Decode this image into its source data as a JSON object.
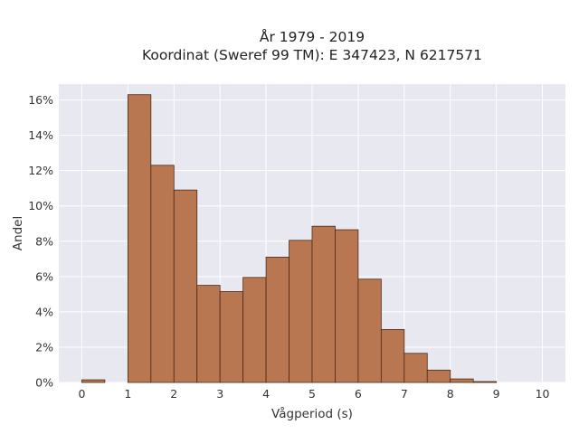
{
  "chart_data": {
    "type": "bar",
    "title": "År 1979 - 2019",
    "subtitle": "Koordinat (Sweref 99 TM): E 347423, N 6217571",
    "xlabel": "Vågperiod (s)",
    "ylabel": "Andel",
    "xlim": [
      -0.5,
      10.5
    ],
    "ylim": [
      0,
      16.9
    ],
    "x_ticks": [
      0,
      1,
      2,
      3,
      4,
      5,
      6,
      7,
      8,
      9,
      10
    ],
    "y_ticks": [
      0,
      2,
      4,
      6,
      8,
      10,
      12,
      14,
      16
    ],
    "y_tick_labels": [
      "0%",
      "2%",
      "4%",
      "6%",
      "8%",
      "10%",
      "12%",
      "14%",
      "16%"
    ],
    "bin_width": 0.5,
    "bins": [
      {
        "start": 0.0,
        "value": 0.15
      },
      {
        "start": 0.5,
        "value": 0.0
      },
      {
        "start": 1.0,
        "value": 16.3
      },
      {
        "start": 1.5,
        "value": 12.3
      },
      {
        "start": 2.0,
        "value": 10.9
      },
      {
        "start": 2.5,
        "value": 5.5
      },
      {
        "start": 3.0,
        "value": 5.15
      },
      {
        "start": 3.5,
        "value": 5.95
      },
      {
        "start": 4.0,
        "value": 7.1
      },
      {
        "start": 4.5,
        "value": 8.05
      },
      {
        "start": 5.0,
        "value": 8.85
      },
      {
        "start": 5.5,
        "value": 8.65
      },
      {
        "start": 6.0,
        "value": 5.85
      },
      {
        "start": 6.5,
        "value": 3.0
      },
      {
        "start": 7.0,
        "value": 1.65
      },
      {
        "start": 7.5,
        "value": 0.7
      },
      {
        "start": 8.0,
        "value": 0.2
      },
      {
        "start": 8.5,
        "value": 0.05
      },
      {
        "start": 9.0,
        "value": 0.0
      },
      {
        "start": 9.5,
        "value": 0.0
      }
    ],
    "grid": true,
    "colors": {
      "bar_fill": "#b87750",
      "bar_stroke": "#4a2a18",
      "plot_background": "#e8e8f1",
      "grid": "#ffffff"
    }
  }
}
